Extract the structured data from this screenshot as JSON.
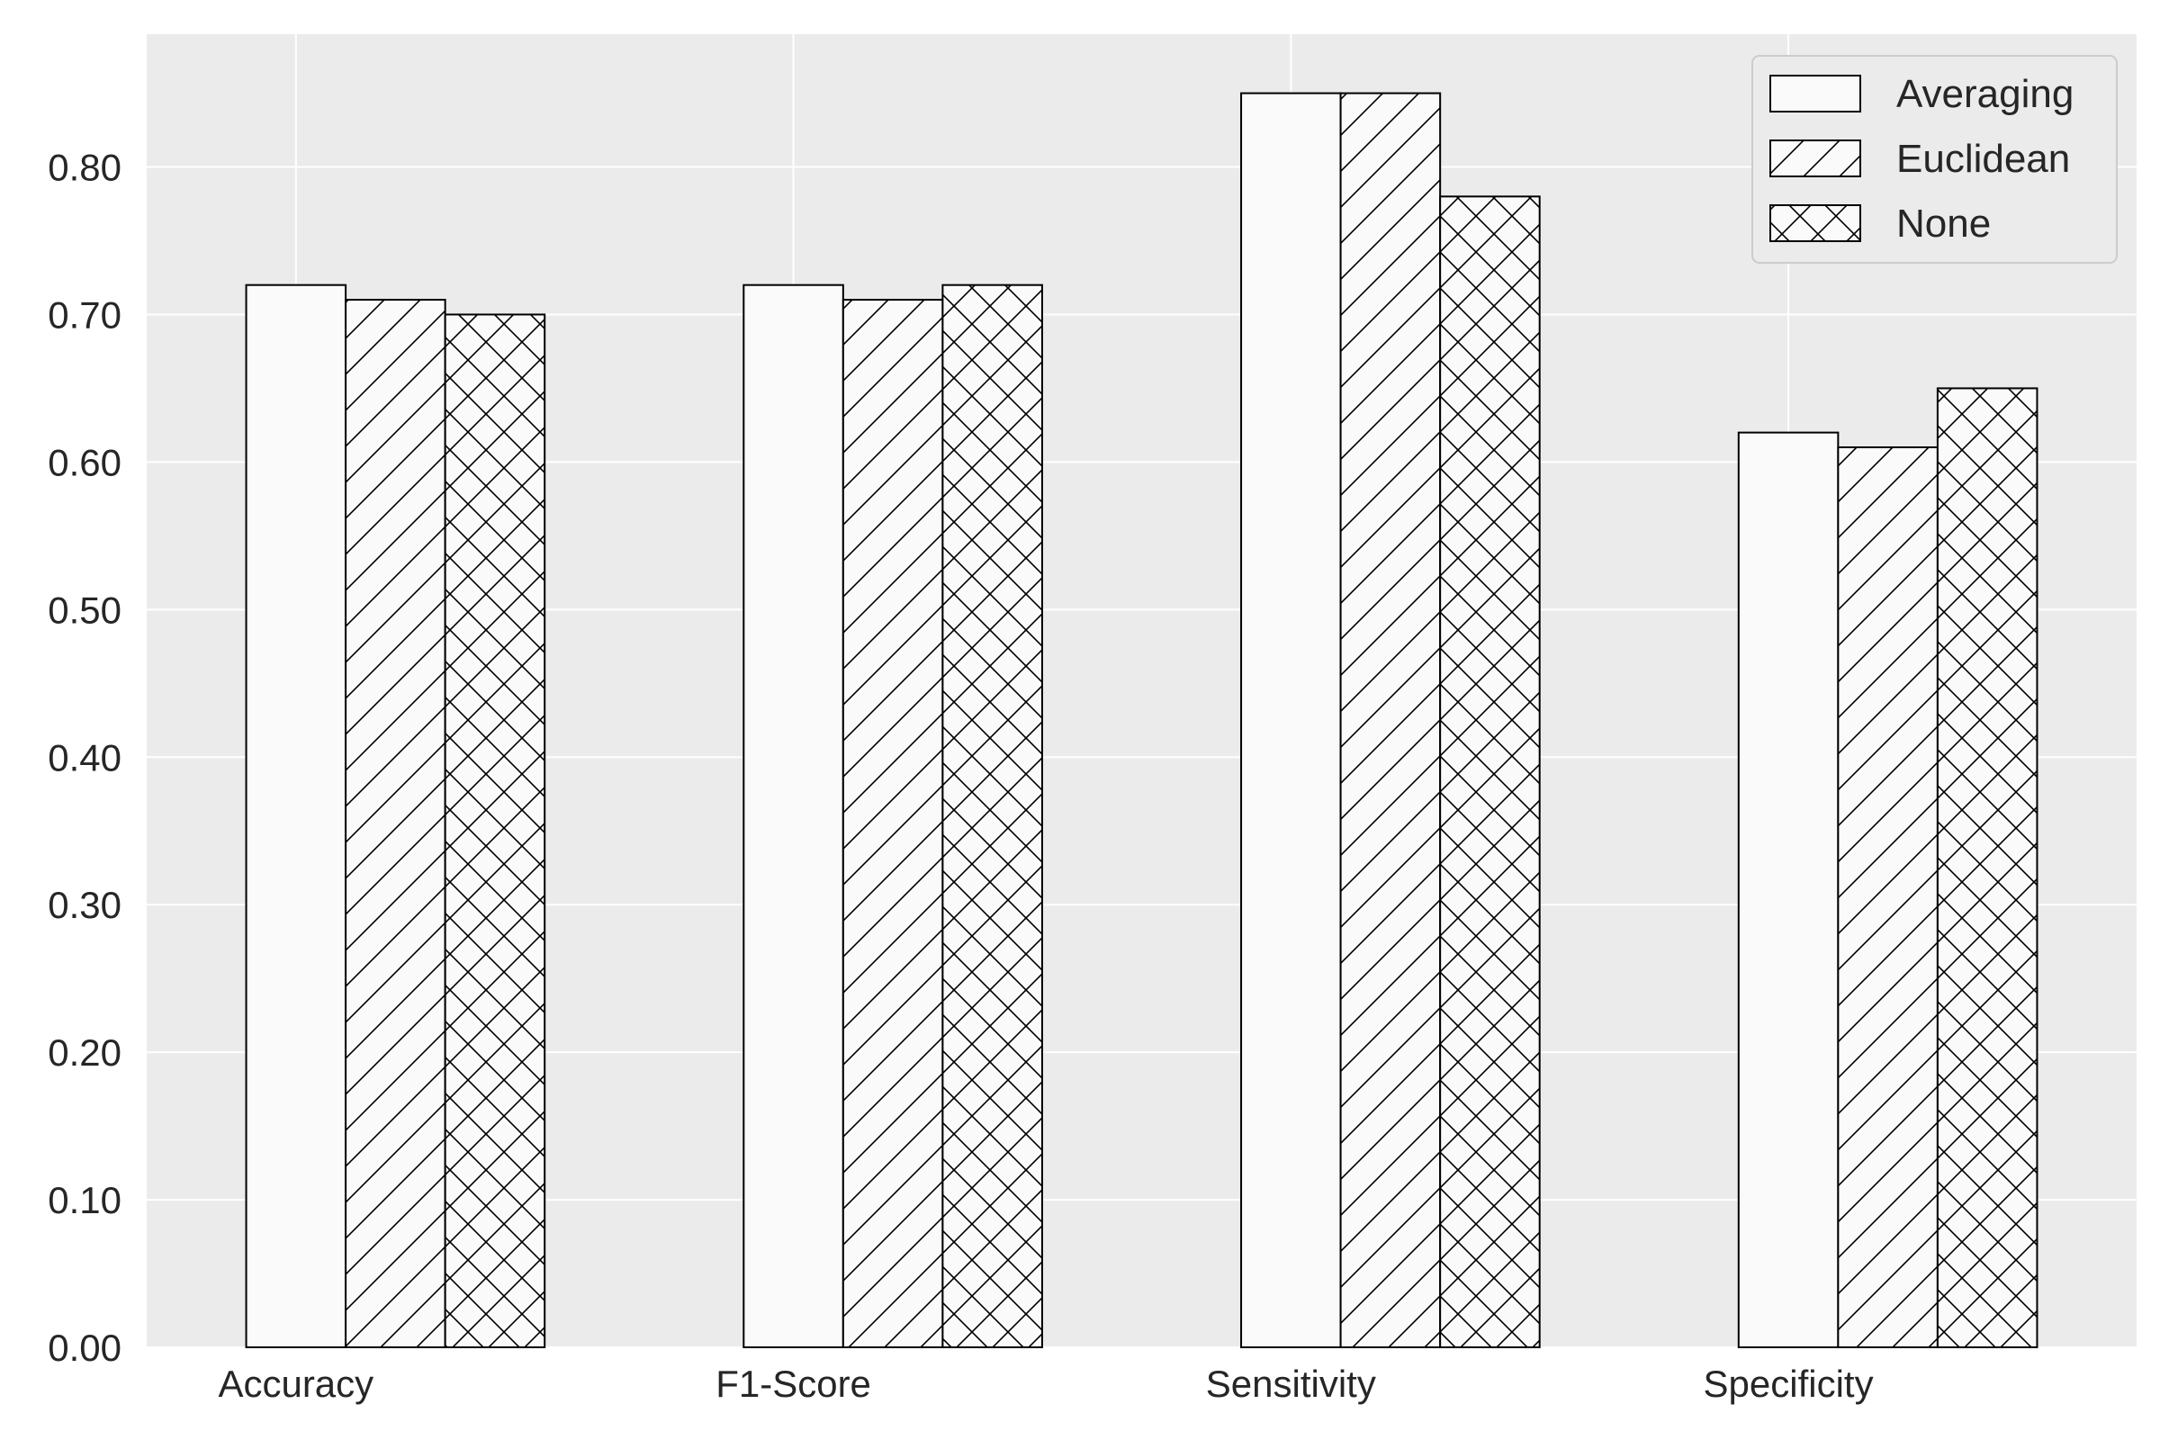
{
  "chart_data": {
    "type": "bar",
    "title": "",
    "xlabel": "",
    "ylabel": "",
    "categories": [
      "Accuracy",
      "F1-Score",
      "Sensitivity",
      "Specificity"
    ],
    "series": [
      {
        "name": "Averaging",
        "values": [
          0.72,
          0.72,
          0.85,
          0.62
        ],
        "hatch": "none"
      },
      {
        "name": "Euclidean",
        "values": [
          0.71,
          0.71,
          0.85,
          0.61
        ],
        "hatch": "diagonal"
      },
      {
        "name": "None",
        "values": [
          0.7,
          0.72,
          0.78,
          0.65
        ],
        "hatch": "cross"
      }
    ],
    "ylim": [
      0,
      0.89
    ],
    "yticks": [
      0.0,
      0.1,
      0.2,
      0.3,
      0.4,
      0.5,
      0.6,
      0.7,
      0.8
    ],
    "ytick_labels": [
      "0.00",
      "0.10",
      "0.20",
      "0.30",
      "0.40",
      "0.50",
      "0.60",
      "0.70",
      "0.80"
    ],
    "grid": true,
    "legend_position": "top-right",
    "colors": {
      "plot_background": "#ebebeb",
      "grid": "#ffffff",
      "bar_fill": "#fafafa",
      "bar_edge": "#000000",
      "text": "#262626"
    }
  }
}
